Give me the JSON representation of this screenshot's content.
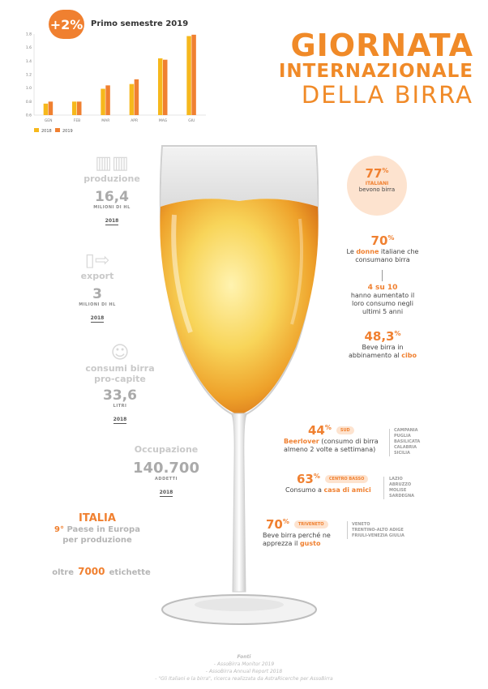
{
  "chart": {
    "badge": "+2%",
    "title": "Primo semestre 2019",
    "legend": [
      "2018",
      "2019"
    ],
    "colors": {
      "s2018": "#f6b81c",
      "s2019": "#f08030"
    }
  },
  "chart_data": {
    "type": "bar",
    "title": "Primo semestre 2019",
    "categories": [
      "GEN",
      "FEB",
      "MAR",
      "APR",
      "MAG",
      "GIU"
    ],
    "series": [
      {
        "name": "2018",
        "values": [
          0.77,
          0.8,
          0.99,
          1.06,
          1.44,
          1.77
        ]
      },
      {
        "name": "2019",
        "values": [
          0.8,
          0.8,
          1.04,
          1.13,
          1.42,
          1.79
        ]
      }
    ],
    "yticks": [
      "0.6",
      "0.8",
      "1.0",
      "1.2",
      "1.4",
      "1.6",
      "1.8"
    ],
    "ylim": [
      0.6,
      1.8
    ],
    "grid": false,
    "legend_position": "bottom-left"
  },
  "title": {
    "line1": "GIORNATA",
    "line2": "INTERNAZIONALE",
    "line3": "DELLA BIRRA"
  },
  "left": {
    "produzione": {
      "label": "produzione",
      "value": "16,4",
      "unit": "MILIONI DI HL",
      "year": "2018"
    },
    "export": {
      "label": "export",
      "value": "3",
      "unit": "MILIONI DI HL",
      "year": "2018"
    },
    "consumi": {
      "label1": "consumi birra",
      "label2": "pro-capite",
      "value": "33,6",
      "unit": "LITRI",
      "year": "2018"
    },
    "occupazione": {
      "label": "Occupazione",
      "value": "140.700",
      "unit": "ADDETTI",
      "year": "2018"
    },
    "italia": {
      "title": "ITALIA",
      "rank": "9°",
      "line1": "Paese in Europa",
      "line2": "per produzione"
    },
    "etichette": {
      "pre": "oltre",
      "num": "7000",
      "post": "etichette"
    }
  },
  "right": {
    "circle": {
      "pct": "77",
      "sup": "%",
      "l1": "ITALIANI",
      "l2": "bevono birra"
    },
    "donne": {
      "pct": "70",
      "sup": "%",
      "pre": "Le",
      "bold": "donne",
      "post": "italiane che",
      "l2": "consumano birra"
    },
    "quattro": {
      "title": "4 su 10",
      "l1": "hanno aumentato il",
      "l2": "loro consumo negli",
      "l3": "ultimi 5 anni"
    },
    "cibo": {
      "pct": "48,3",
      "sup": "%",
      "l1": "Beve birra in",
      "pre2": "abbinamento al",
      "bold": "cibo"
    },
    "sud": {
      "pct": "44",
      "sup": "%",
      "tag": "SUD",
      "bold": "Beerlover",
      "l1rest": "(consumo di birra",
      "l2": "almeno 2 volte a settimana)",
      "regions": [
        "CAMPANIA",
        "PUGLIA",
        "BASILICATA",
        "CALABRIA",
        "SICILIA"
      ]
    },
    "centro": {
      "pct": "63",
      "sup": "%",
      "tag": "CENTRO BASSO",
      "pre": "Consumo a",
      "bold": "casa di amici",
      "regions": [
        "LAZIO",
        "ABRUZZO",
        "MOLISE",
        "SARDEGNA"
      ]
    },
    "triveneto": {
      "pct": "70",
      "sup": "%",
      "tag": "TRIVENETO",
      "l1": "Beve birra perché ne",
      "pre2": "apprezza il",
      "bold": "gusto",
      "regions": [
        "VENETO",
        "TRENTINO-ALTO ADIGE",
        "FRIULI-VENEZIA GIULIA"
      ]
    }
  },
  "sources": {
    "title": "Fonti",
    "items": [
      "- AssoBirra Monitor 2019",
      "- AssoBirra Annual Report 2018",
      "- \"Gli Italiani e la birra\", ricerca realizzata da AstraRicerche per AssoBirra"
    ]
  }
}
